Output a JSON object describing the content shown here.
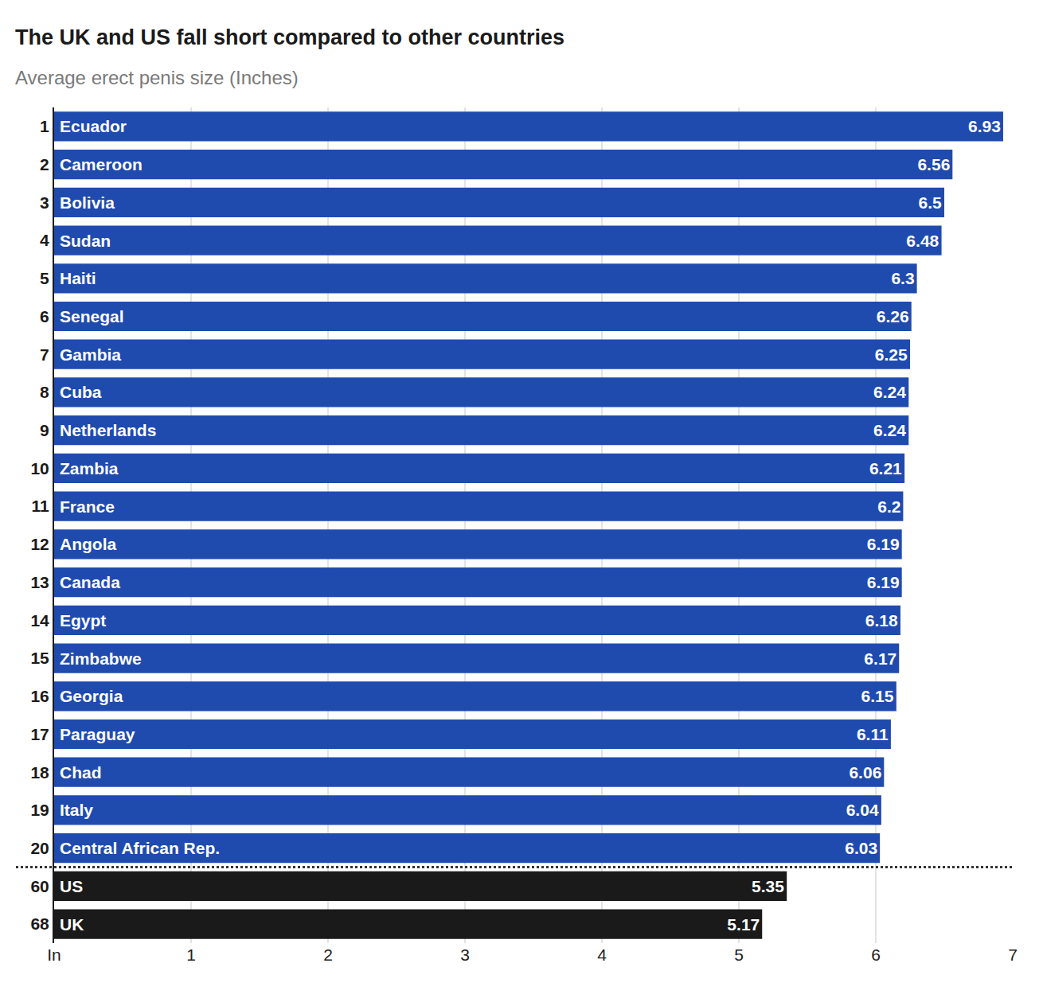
{
  "chart_data": {
    "type": "bar",
    "orientation": "horizontal",
    "title": "The UK and US fall short compared to other countries",
    "subtitle": "Average erect penis size (Inches)",
    "ranks": [
      1,
      2,
      3,
      4,
      5,
      6,
      7,
      8,
      9,
      10,
      11,
      12,
      13,
      14,
      15,
      16,
      17,
      18,
      19,
      20,
      60,
      68
    ],
    "categories": [
      "Ecuador",
      "Cameroon",
      "Bolivia",
      "Sudan",
      "Haiti",
      "Senegal",
      "Gambia",
      "Cuba",
      "Netherlands",
      "Zambia",
      "France",
      "Angola",
      "Canada",
      "Egypt",
      "Zimbabwe",
      "Georgia",
      "Paraguay",
      "Chad",
      "Italy",
      "Central African Rep.",
      "US",
      "UK"
    ],
    "values": [
      6.93,
      6.56,
      6.5,
      6.48,
      6.3,
      6.26,
      6.25,
      6.24,
      6.24,
      6.21,
      6.2,
      6.19,
      6.19,
      6.18,
      6.17,
      6.15,
      6.11,
      6.06,
      6.04,
      6.03,
      5.35,
      5.17
    ],
    "colors": [
      "#1f4baf",
      "#1f4baf",
      "#1f4baf",
      "#1f4baf",
      "#1f4baf",
      "#1f4baf",
      "#1f4baf",
      "#1f4baf",
      "#1f4baf",
      "#1f4baf",
      "#1f4baf",
      "#1f4baf",
      "#1f4baf",
      "#1f4baf",
      "#1f4baf",
      "#1f4baf",
      "#1f4baf",
      "#1f4baf",
      "#1f4baf",
      "#1f4baf",
      "#1a1a1a",
      "#1a1a1a"
    ],
    "xlim": [
      0,
      7
    ],
    "xticks": [
      {
        "value": 0,
        "label": "In"
      },
      1,
      2,
      3,
      4,
      5,
      6,
      7
    ],
    "grid": true,
    "data_labels": true
  }
}
